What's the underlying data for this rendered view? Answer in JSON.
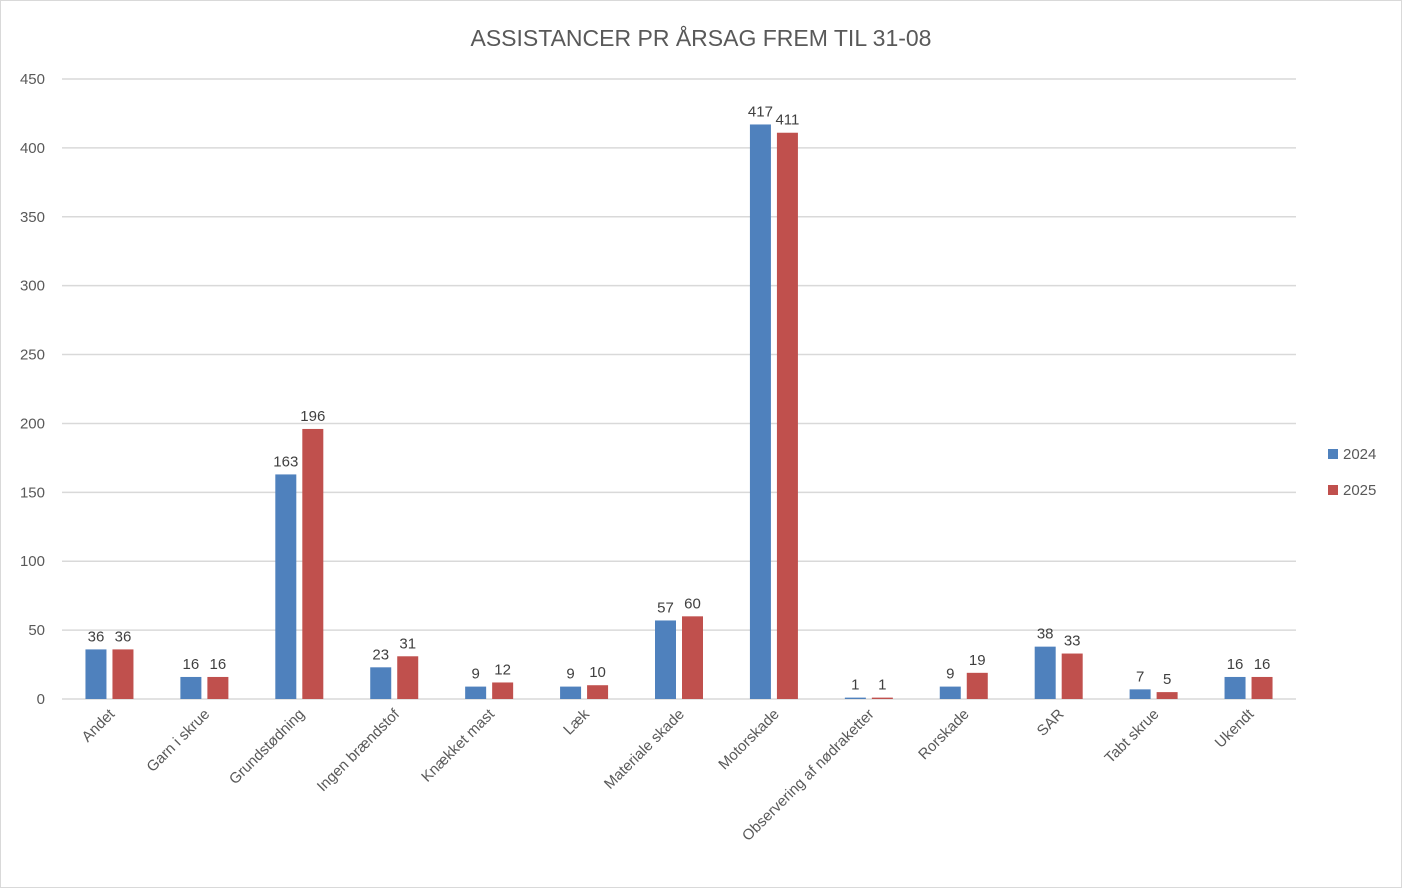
{
  "chart_data": {
    "type": "bar",
    "title": "ASSISTANCER PR ÅRSAG FREM TIL 31-08",
    "xlabel": "",
    "ylabel": "",
    "ylim": [
      0,
      450
    ],
    "yticks": [
      0,
      50,
      100,
      150,
      200,
      250,
      300,
      350,
      400,
      450
    ],
    "grid": true,
    "legend_position": "right",
    "categories": [
      "Andet",
      "Garn i skrue",
      "Grundstødning",
      "Ingen brændstof",
      "Knækket mast",
      "Læk",
      "Materiale skade",
      "Motorskade",
      "Observering af nødraketter",
      "Rorskade",
      "SAR",
      "Tabt skrue",
      "Ukendt"
    ],
    "series": [
      {
        "name": "2024",
        "color": "#4f81bd",
        "values": [
          36,
          16,
          163,
          23,
          9,
          9,
          57,
          417,
          1,
          9,
          38,
          7,
          16
        ]
      },
      {
        "name": "2025",
        "color": "#c0504d",
        "values": [
          36,
          16,
          196,
          31,
          12,
          10,
          60,
          411,
          1,
          19,
          33,
          5,
          16
        ]
      }
    ]
  }
}
